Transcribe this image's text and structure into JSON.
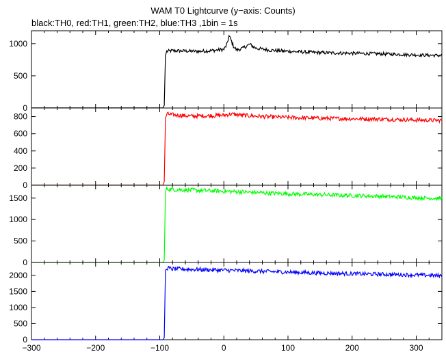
{
  "chart_data": {
    "type": "line",
    "title": "WAM T0 Lightcurve (y−axis: Counts)",
    "subtitle": "black:TH0, red:TH1, green:TH2, blue:TH3 ,1bin = 1s",
    "xlim": [
      -300,
      340
    ],
    "x_ticks": [
      -300,
      -200,
      -100,
      0,
      100,
      200,
      300
    ],
    "x_tick_labels": [
      "−300",
      "−200",
      "−100",
      "0",
      "100",
      "200",
      "300"
    ],
    "grid": false,
    "panels": [
      {
        "name": "TH0",
        "color": "#000000",
        "ylim": [
          0,
          1200
        ],
        "y_ticks": [
          0,
          500,
          1000
        ],
        "y_tick_labels": [
          "0",
          "500",
          "1000"
        ],
        "points": [
          [
            -300,
            2
          ],
          [
            -95,
            2
          ],
          [
            -93,
            40
          ],
          [
            -91,
            820
          ],
          [
            -89,
            880
          ],
          [
            -80,
            890
          ],
          [
            -60,
            885
          ],
          [
            -40,
            880
          ],
          [
            -20,
            890
          ],
          [
            0,
            910
          ],
          [
            5,
            990
          ],
          [
            8,
            1120
          ],
          [
            11,
            1060
          ],
          [
            15,
            960
          ],
          [
            20,
            900
          ],
          [
            30,
            930
          ],
          [
            40,
            990
          ],
          [
            50,
            930
          ],
          [
            70,
            900
          ],
          [
            100,
            880
          ],
          [
            150,
            860
          ],
          [
            200,
            850
          ],
          [
            250,
            840
          ],
          [
            300,
            825
          ],
          [
            340,
            815
          ]
        ]
      },
      {
        "name": "TH1",
        "color": "#ff0000",
        "ylim": [
          0,
          900
        ],
        "y_ticks": [
          0,
          200,
          400,
          600,
          800
        ],
        "y_tick_labels": [
          "0",
          "200",
          "400",
          "600",
          "800"
        ],
        "points": [
          [
            -300,
            1
          ],
          [
            -95,
            1
          ],
          [
            -93,
            40
          ],
          [
            -91,
            780
          ],
          [
            -89,
            830
          ],
          [
            -80,
            820
          ],
          [
            -50,
            805
          ],
          [
            -20,
            810
          ],
          [
            0,
            815
          ],
          [
            10,
            830
          ],
          [
            30,
            815
          ],
          [
            60,
            800
          ],
          [
            100,
            790
          ],
          [
            150,
            780
          ],
          [
            200,
            775
          ],
          [
            250,
            770
          ],
          [
            300,
            760
          ],
          [
            340,
            755
          ]
        ]
      },
      {
        "name": "TH2",
        "color": "#00ff00",
        "ylim": [
          0,
          1800
        ],
        "y_ticks": [
          0,
          500,
          1000,
          1500
        ],
        "y_tick_labels": [
          "0",
          "500",
          "1000",
          "1500"
        ],
        "points": [
          [
            -300,
            1
          ],
          [
            -95,
            1
          ],
          [
            -93,
            50
          ],
          [
            -91,
            1650
          ],
          [
            -89,
            1720
          ],
          [
            -80,
            1700
          ],
          [
            -40,
            1680
          ],
          [
            0,
            1660
          ],
          [
            50,
            1630
          ],
          [
            100,
            1600
          ],
          [
            150,
            1580
          ],
          [
            200,
            1560
          ],
          [
            250,
            1540
          ],
          [
            300,
            1510
          ],
          [
            340,
            1490
          ]
        ]
      },
      {
        "name": "TH3",
        "color": "#0000ff",
        "ylim": [
          0,
          2400
        ],
        "y_ticks": [
          0,
          500,
          1000,
          1500,
          2000
        ],
        "y_tick_labels": [
          "0",
          "500",
          "1000",
          "1500",
          "2000"
        ],
        "points": [
          [
            -300,
            1
          ],
          [
            -95,
            1
          ],
          [
            -93,
            60
          ],
          [
            -91,
            2150
          ],
          [
            -89,
            2230
          ],
          [
            -80,
            2200
          ],
          [
            -40,
            2180
          ],
          [
            0,
            2160
          ],
          [
            50,
            2130
          ],
          [
            100,
            2100
          ],
          [
            150,
            2070
          ],
          [
            200,
            2050
          ],
          [
            250,
            2030
          ],
          [
            300,
            2010
          ],
          [
            340,
            1990
          ]
        ]
      }
    ]
  }
}
